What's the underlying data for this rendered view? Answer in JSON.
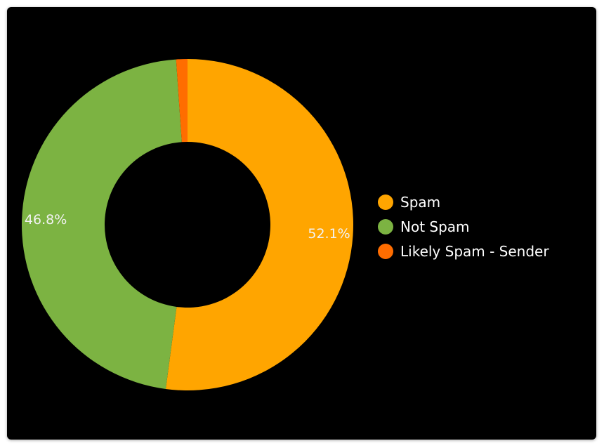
{
  "chart_data": {
    "type": "pie",
    "variant": "donut",
    "categories": [
      "Spam",
      "Not Spam",
      "Likely Spam - Sender"
    ],
    "values": [
      52.1,
      46.8,
      1.1
    ],
    "data_labels": [
      "52.1%",
      "46.8%",
      ""
    ],
    "colors": [
      "#FFA500",
      "#7CB342",
      "#FF6D00"
    ],
    "legend_position": "right"
  },
  "legend": {
    "items": [
      {
        "label": "Spam",
        "color": "#FFA500"
      },
      {
        "label": "Not Spam",
        "color": "#7CB342"
      },
      {
        "label": "Likely Spam - Sender",
        "color": "#FF6D00"
      }
    ]
  }
}
